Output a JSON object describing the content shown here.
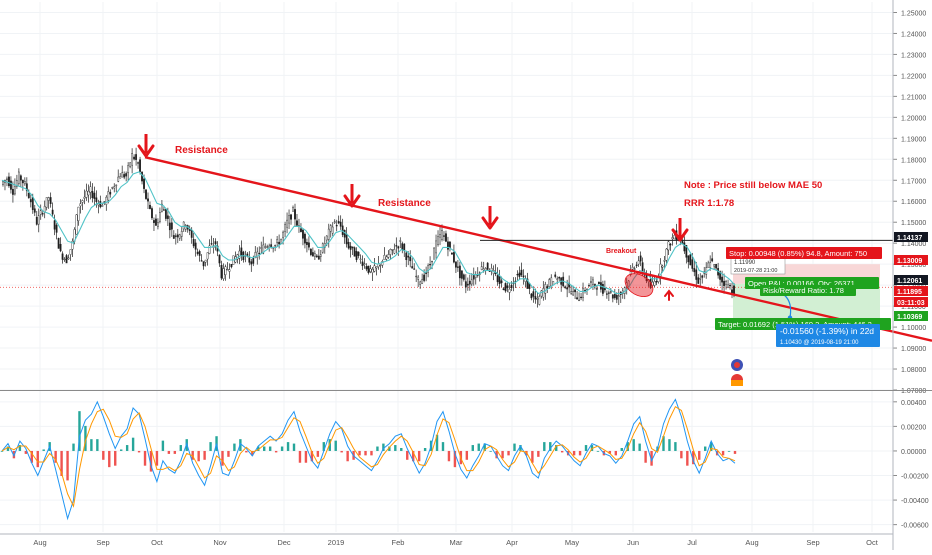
{
  "chart_data": [
    {
      "type": "line",
      "panel": "price",
      "y_axis_ticks": [
        "1.25000",
        "1.24000",
        "1.23000",
        "1.22000",
        "1.21000",
        "1.20000",
        "1.19000",
        "1.18000",
        "1.17000",
        "1.16000",
        "1.15000",
        "1.14000",
        "1.13000",
        "1.12000",
        "1.11000",
        "1.10000",
        "1.09000",
        "1.08000",
        "1.07000"
      ],
      "ylim": [
        1.07,
        1.255
      ],
      "x_axis_ticks": [
        "Aug",
        "Sep",
        "Oct",
        "Nov",
        "Dec",
        "2019",
        "Feb",
        "Mar",
        "Apr",
        "May",
        "Jun",
        "Jul",
        "Aug",
        "Sep",
        "Oct"
      ],
      "series": [
        {
          "values": [
            1.168,
            1.171,
            1.165,
            1.172,
            1.168,
            1.16,
            1.15,
            1.156,
            1.162,
            1.148,
            1.135,
            1.132,
            1.14,
            1.158,
            1.162,
            1.165,
            1.16,
            1.158,
            1.163,
            1.168,
            1.173,
            1.172,
            1.182,
            1.178,
            1.165,
            1.155,
            1.148,
            1.158,
            1.151,
            1.143,
            1.145,
            1.15,
            1.142,
            1.135,
            1.13,
            1.138,
            1.14,
            1.125,
            1.128,
            1.132,
            1.136,
            1.133,
            1.131,
            1.135,
            1.138,
            1.14,
            1.139,
            1.142,
            1.15,
            1.155,
            1.147,
            1.142,
            1.136,
            1.132,
            1.138,
            1.145,
            1.15,
            1.148,
            1.14,
            1.136,
            1.133,
            1.13,
            1.126,
            1.128,
            1.132,
            1.134,
            1.138,
            1.14,
            1.134,
            1.128,
            1.122,
            1.124,
            1.13,
            1.14,
            1.145,
            1.139,
            1.132,
            1.125,
            1.12,
            1.123,
            1.126,
            1.129,
            1.128,
            1.124,
            1.12,
            1.118,
            1.122,
            1.126,
            1.122,
            1.115,
            1.112,
            1.118,
            1.121,
            1.124,
            1.122,
            1.119,
            1.116,
            1.114,
            1.118,
            1.121,
            1.12,
            1.118,
            1.117,
            1.114,
            1.116,
            1.121,
            1.128,
            1.132,
            1.125,
            1.119,
            1.123,
            1.131,
            1.139,
            1.144,
            1.142,
            1.135,
            1.128,
            1.122,
            1.125,
            1.132,
            1.127,
            1.122,
            1.12,
            1.117
          ]
        },
        {
          "values": [
            1.17,
            1.169,
            1.168,
            1.167,
            1.166,
            1.163,
            1.158,
            1.155,
            1.154,
            1.151,
            1.146,
            1.141,
            1.14,
            1.146,
            1.152,
            1.157,
            1.159,
            1.159,
            1.16,
            1.163,
            1.167,
            1.169,
            1.173,
            1.174,
            1.171,
            1.165,
            1.159,
            1.158,
            1.155,
            1.15,
            1.148,
            1.148,
            1.146,
            1.142,
            1.138,
            1.138,
            1.139,
            1.134,
            1.132,
            1.132,
            1.134,
            1.134,
            1.133,
            1.134,
            1.136,
            1.138,
            1.138,
            1.14,
            1.144,
            1.148,
            1.148,
            1.146,
            1.142,
            1.138,
            1.138,
            1.141,
            1.145,
            1.146,
            1.144,
            1.141,
            1.138,
            1.135,
            1.131,
            1.13,
            1.131,
            1.132,
            1.134,
            1.137,
            1.136,
            1.133,
            1.128,
            1.126,
            1.128,
            1.133,
            1.138,
            1.138,
            1.136,
            1.131,
            1.126,
            1.125,
            1.125,
            1.127,
            1.127,
            1.126,
            1.123,
            1.121,
            1.121,
            1.123,
            1.123,
            1.119,
            1.116,
            1.117,
            1.119,
            1.121,
            1.122,
            1.121,
            1.119,
            1.117,
            1.117,
            1.119,
            1.12,
            1.119,
            1.118,
            1.116,
            1.116,
            1.118,
            1.123,
            1.127,
            1.126,
            1.123,
            1.123,
            1.127,
            1.133,
            1.138,
            1.14,
            1.138,
            1.133,
            1.127,
            1.126,
            1.128,
            1.127,
            1.125,
            1.123,
            1.12
          ]
        }
      ],
      "annotations": {
        "resistance_1": "Resistance",
        "resistance_2": "Resistance",
        "breakout": "Breakout",
        "note": "Note : Price still below MAE 50",
        "rrr": "RRR 1:1.78"
      },
      "hover_box": {
        "price": "1.11990",
        "time": "2019-07-28 21:00"
      },
      "position": {
        "stop": "Stop: 0.00948 (0.85%) 94.8, Amount: 750",
        "open_pnl": "Open P&L: 0.00166, Qty: 26371",
        "rr_ratio": "Risk/Reward Ratio: 1.78",
        "target": "Target: 0.01692 (1.51%) 169.2, Amount: 446.2"
      },
      "measure": {
        "line1": "-0.01560 (-1.39%) in 22d",
        "line2": "1.10430 @ 2019-08-19 21:00"
      },
      "price_labels": [
        {
          "text": "1.14137",
          "style": "dark"
        },
        {
          "text": "1.13009",
          "style": "red"
        },
        {
          "text": "1.12061",
          "style": "dark"
        },
        {
          "text": "1.11895",
          "style": "red"
        },
        {
          "text": "03:11:03",
          "style": "red"
        },
        {
          "text": "1.10369",
          "style": "green"
        }
      ]
    },
    {
      "type": "bar",
      "panel": "oscillator",
      "y_axis_ticks": [
        "0.00400",
        "0.00200",
        "0.00000",
        "-0.00200",
        "-0.00400",
        "-0.00600"
      ],
      "ylim": [
        -0.0066,
        0.0048
      ],
      "series": [
        {
          "values": [
            0.0,
            0.0006,
            -0.0004,
            0.0008,
            0.0002,
            -0.001,
            -0.002,
            -0.0008,
            0.0004,
            -0.0015,
            -0.0035,
            -0.0055,
            -0.004,
            0.0012,
            0.0025,
            0.003,
            0.004,
            0.0028,
            0.0014,
            0.0002,
            0.0012,
            0.0018,
            0.0035,
            0.003,
            0.001,
            -0.0012,
            -0.0025,
            -0.0008,
            -0.0015,
            -0.0018,
            -0.0008,
            0.0006,
            -0.001,
            -0.002,
            -0.0028,
            -0.0012,
            0.0006,
            -0.0018,
            -0.002,
            -0.0008,
            0.0006,
            0.0002,
            -0.0004,
            0.0004,
            0.0008,
            0.0012,
            0.0008,
            0.0014,
            0.0025,
            0.0032,
            0.0016,
            0.0004,
            -0.0008,
            -0.0014,
            0.0,
            0.0014,
            0.0024,
            0.0018,
            0.0004,
            -0.0004,
            -0.0008,
            -0.0012,
            -0.0016,
            -0.0008,
            0.0002,
            0.0006,
            0.0012,
            0.0014,
            0.0002,
            -0.0008,
            -0.0018,
            -0.001,
            0.0004,
            0.0024,
            0.0032,
            0.0016,
            -0.0002,
            -0.0015,
            -0.0022,
            -0.0012,
            -0.0004,
            0.0006,
            0.0004,
            -0.0004,
            -0.0012,
            -0.0016,
            -0.0004,
            0.0004,
            -0.0004,
            -0.0018,
            -0.0022,
            -0.0006,
            0.0002,
            0.0008,
            0.0004,
            -0.0002,
            -0.0008,
            -0.0012,
            -0.0002,
            0.0006,
            0.0004,
            -0.0002,
            -0.0004,
            -0.001,
            -0.0004,
            0.0008,
            0.0022,
            0.0028,
            0.0008,
            -0.0008,
            0.0002,
            0.0022,
            0.0034,
            0.0042,
            0.0028,
            0.0008,
            -0.0008,
            -0.0018,
            -0.0006,
            0.0008,
            -0.0002,
            -0.0008,
            -0.0006,
            -0.001
          ]
        },
        {
          "values": [
            0.0,
            0.0003,
            0.0001,
            0.0004,
            0.0004,
            -0.0002,
            -0.0009,
            -0.0009,
            -0.0002,
            -0.0007,
            -0.0018,
            -0.0035,
            -0.0045,
            -0.0015,
            0.0008,
            0.0022,
            0.0032,
            0.0034,
            0.0025,
            0.0012,
            0.0011,
            0.0014,
            0.0026,
            0.0031,
            0.002,
            0.0002,
            -0.0015,
            -0.0015,
            -0.0013,
            -0.0016,
            -0.0012,
            -0.0002,
            -0.0004,
            -0.0013,
            -0.0022,
            -0.0018,
            -0.0004,
            -0.0008,
            -0.0016,
            -0.0013,
            -0.0002,
            0.0003,
            -0.0001,
            0.0001,
            0.0005,
            0.0009,
            0.0009,
            0.0011,
            0.0019,
            0.0027,
            0.0024,
            0.0012,
            -0.0001,
            -0.001,
            -0.0006,
            0.0006,
            0.0017,
            0.0019,
            0.0011,
            0.0002,
            -0.0005,
            -0.0009,
            -0.0013,
            -0.0011,
            -0.0003,
            0.0003,
            0.0008,
            0.0012,
            0.0008,
            -0.0001,
            -0.0011,
            -0.0012,
            -0.0003,
            0.0013,
            0.0026,
            0.0023,
            0.0009,
            -0.0006,
            -0.0016,
            -0.0016,
            -0.0009,
            0.0001,
            0.0004,
            0.0001,
            -0.0007,
            -0.0013,
            -0.0009,
            0.0,
            -0.0001,
            -0.001,
            -0.0018,
            -0.0012,
            -0.0004,
            0.0004,
            0.0005,
            0.0001,
            -0.0005,
            -0.0009,
            -0.0006,
            0.0002,
            0.0004,
            0.0001,
            -0.0002,
            -0.0007,
            -0.0006,
            0.0002,
            0.0014,
            0.0023,
            0.0016,
            0.0002,
            -0.0001,
            0.0012,
            0.0026,
            0.0036,
            0.0033,
            0.0018,
            0.0001,
            -0.0012,
            -0.0009,
            0.0002,
            0.0001,
            -0.0005,
            -0.0006,
            -0.0008
          ]
        }
      ]
    }
  ],
  "colors": {
    "candle_dark": "#1f1f1f",
    "ma_line": "#4fc3c7",
    "trendline": "#e4151b",
    "resistance_text": "#e4151b",
    "arrow": "#e4151b",
    "stop_zone": "#f8d7d7",
    "target_zone": "#d2efd3",
    "osc_blue": "#2196f3",
    "osc_orange": "#ff9800",
    "hist_teal": "#26a69a",
    "hist_red": "#ef5350",
    "label_red": "#e4151b",
    "label_green": "#1fa31f",
    "label_blue": "#1e88e5"
  }
}
